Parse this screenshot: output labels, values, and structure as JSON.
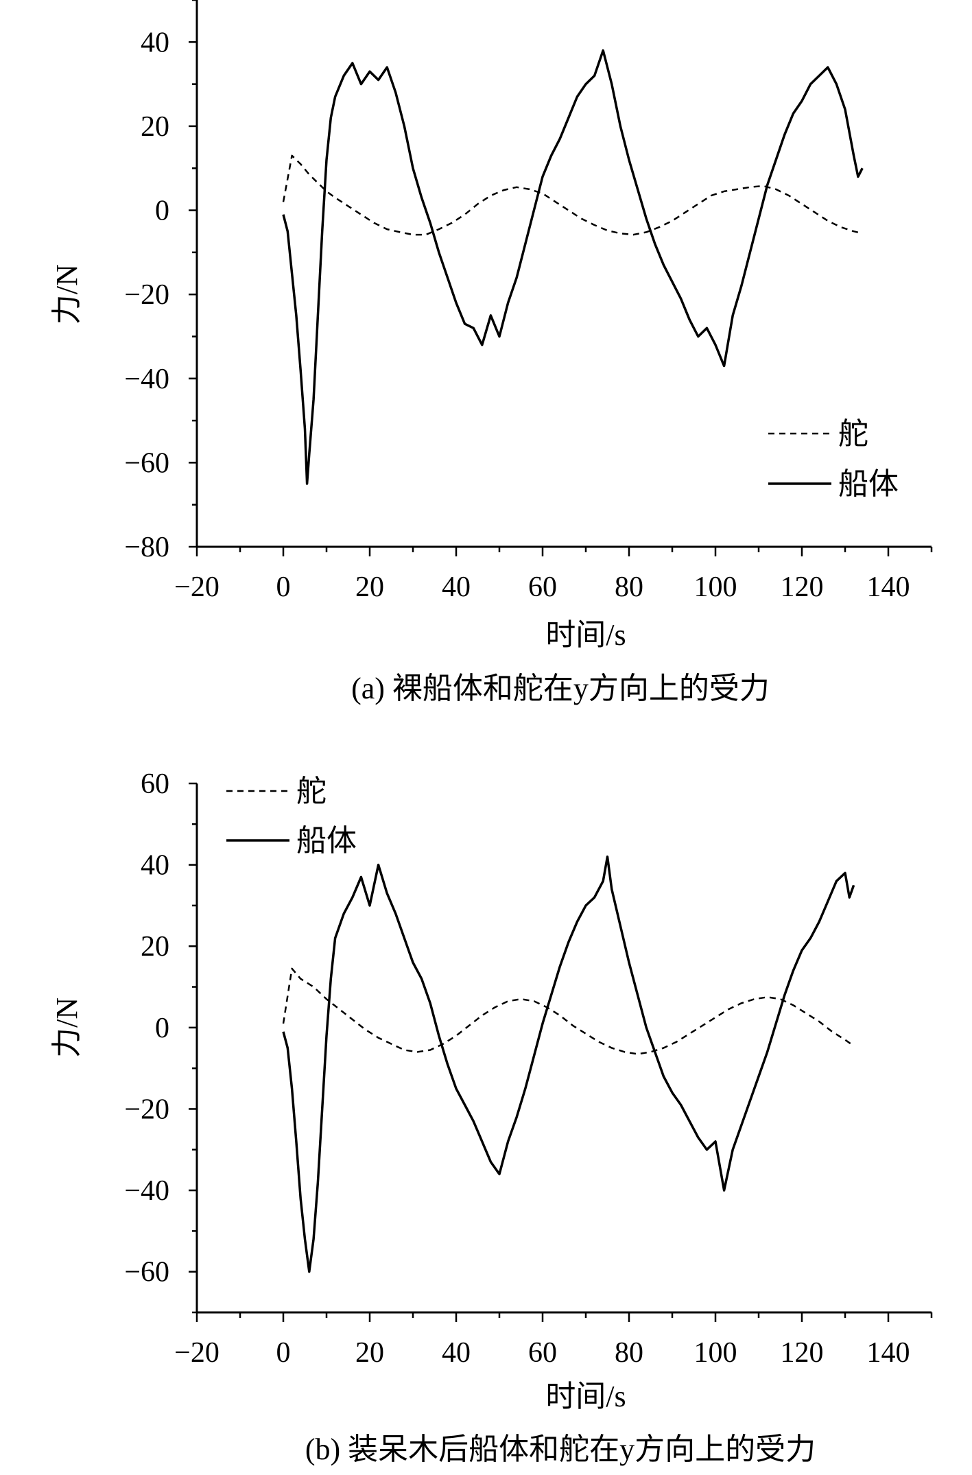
{
  "chart_data": [
    {
      "type": "line",
      "title": "(a) 裸船体和舵在y方向上的受力",
      "xlabel": "时间/s",
      "ylabel": "力/N",
      "xlim": [
        -20,
        150
      ],
      "ylim": [
        -80,
        50
      ],
      "xticks": [
        -20,
        0,
        20,
        40,
        60,
        80,
        100,
        120,
        140
      ],
      "yticks": [
        -80,
        -60,
        -40,
        -20,
        0,
        20,
        40
      ],
      "xtick_labels": [
        "−20",
        "0",
        "20",
        "40",
        "60",
        "80",
        "100",
        "120",
        "140"
      ],
      "ytick_labels": [
        "−80",
        "−60",
        "−40",
        "−20",
        "0",
        "20",
        "40"
      ],
      "legend_position": "lower-right",
      "series": [
        {
          "name": "舵",
          "style": "dashed",
          "points": [
            [
              0,
              2
            ],
            [
              2,
              13
            ],
            [
              4,
              11
            ],
            [
              6,
              8.5
            ],
            [
              8,
              6.5
            ],
            [
              10,
              4.5
            ],
            [
              12,
              3
            ],
            [
              15,
              1
            ],
            [
              18,
              -1
            ],
            [
              21,
              -3
            ],
            [
              24,
              -4.5
            ],
            [
              27,
              -5.2
            ],
            [
              30,
              -5.8
            ],
            [
              33,
              -5.8
            ],
            [
              36,
              -4.5
            ],
            [
              39,
              -3
            ],
            [
              42,
              -1
            ],
            [
              45,
              1.5
            ],
            [
              48,
              3.5
            ],
            [
              51,
              4.8
            ],
            [
              54,
              5.5
            ],
            [
              57,
              5
            ],
            [
              60,
              4
            ],
            [
              63,
              2
            ],
            [
              66,
              0
            ],
            [
              69,
              -2
            ],
            [
              72,
              -3.5
            ],
            [
              75,
              -4.8
            ],
            [
              78,
              -5.5
            ],
            [
              81,
              -5.8
            ],
            [
              84,
              -5.2
            ],
            [
              87,
              -4
            ],
            [
              90,
              -2.5
            ],
            [
              93,
              -0.5
            ],
            [
              96,
              1.5
            ],
            [
              99,
              3.5
            ],
            [
              102,
              4.5
            ],
            [
              105,
              5
            ],
            [
              108,
              5.5
            ],
            [
              111,
              5.8
            ],
            [
              114,
              5
            ],
            [
              117,
              3.5
            ],
            [
              120,
              1.5
            ],
            [
              123,
              -0.5
            ],
            [
              126,
              -2.5
            ],
            [
              129,
              -4
            ],
            [
              132,
              -5
            ],
            [
              134,
              -5.5
            ]
          ]
        },
        {
          "name": "船体",
          "style": "solid",
          "points": [
            [
              0,
              -1
            ],
            [
              1,
              -5
            ],
            [
              2,
              -15
            ],
            [
              3,
              -25
            ],
            [
              4,
              -38
            ],
            [
              5,
              -52
            ],
            [
              5.5,
              -65
            ],
            [
              6,
              -58
            ],
            [
              7,
              -45
            ],
            [
              8,
              -25
            ],
            [
              9,
              -5
            ],
            [
              10,
              12
            ],
            [
              11,
              22
            ],
            [
              12,
              27
            ],
            [
              14,
              32
            ],
            [
              16,
              35
            ],
            [
              18,
              30
            ],
            [
              20,
              33
            ],
            [
              22,
              31
            ],
            [
              24,
              34
            ],
            [
              26,
              28
            ],
            [
              28,
              20
            ],
            [
              30,
              10
            ],
            [
              32,
              3
            ],
            [
              34,
              -3
            ],
            [
              36,
              -10
            ],
            [
              38,
              -16
            ],
            [
              40,
              -22
            ],
            [
              42,
              -27
            ],
            [
              44,
              -28
            ],
            [
              46,
              -32
            ],
            [
              48,
              -25
            ],
            [
              50,
              -30
            ],
            [
              52,
              -22
            ],
            [
              54,
              -16
            ],
            [
              56,
              -8
            ],
            [
              58,
              0
            ],
            [
              60,
              8
            ],
            [
              62,
              13
            ],
            [
              64,
              17
            ],
            [
              66,
              22
            ],
            [
              68,
              27
            ],
            [
              70,
              30
            ],
            [
              72,
              32
            ],
            [
              74,
              38
            ],
            [
              76,
              30
            ],
            [
              78,
              20
            ],
            [
              80,
              12
            ],
            [
              82,
              5
            ],
            [
              84,
              -2
            ],
            [
              86,
              -8
            ],
            [
              88,
              -13
            ],
            [
              90,
              -17
            ],
            [
              92,
              -21
            ],
            [
              94,
              -26
            ],
            [
              96,
              -30
            ],
            [
              98,
              -28
            ],
            [
              100,
              -32
            ],
            [
              102,
              -37
            ],
            [
              104,
              -25
            ],
            [
              106,
              -18
            ],
            [
              108,
              -10
            ],
            [
              110,
              -2
            ],
            [
              112,
              6
            ],
            [
              114,
              12
            ],
            [
              116,
              18
            ],
            [
              118,
              23
            ],
            [
              120,
              26
            ],
            [
              122,
              30
            ],
            [
              124,
              32
            ],
            [
              126,
              34
            ],
            [
              128,
              30
            ],
            [
              130,
              24
            ],
            [
              132,
              13
            ],
            [
              133,
              8
            ],
            [
              134,
              10
            ]
          ]
        }
      ]
    },
    {
      "type": "line",
      "title": "(b) 装呆木后船体和舵在y方向上的受力",
      "xlabel": "时间/s",
      "ylabel": "力/N",
      "xlim": [
        -20,
        150
      ],
      "ylim": [
        -70,
        60
      ],
      "xticks": [
        -20,
        0,
        20,
        40,
        60,
        80,
        100,
        120,
        140
      ],
      "yticks": [
        -60,
        -40,
        -20,
        0,
        20,
        40,
        60
      ],
      "xtick_labels": [
        "−20",
        "0",
        "20",
        "40",
        "60",
        "80",
        "100",
        "120",
        "140"
      ],
      "ytick_labels": [
        "−60",
        "−40",
        "−20",
        "0",
        "20",
        "40",
        "60"
      ],
      "legend_position": "top-left",
      "series": [
        {
          "name": "舵",
          "style": "dashed",
          "points": [
            [
              0,
              1
            ],
            [
              2,
              14.5
            ],
            [
              4,
              12
            ],
            [
              7,
              10
            ],
            [
              10,
              7
            ],
            [
              13,
              4.5
            ],
            [
              16,
              2
            ],
            [
              19,
              -0.5
            ],
            [
              22,
              -2.5
            ],
            [
              25,
              -4
            ],
            [
              28,
              -5.5
            ],
            [
              31,
              -6
            ],
            [
              34,
              -5.5
            ],
            [
              37,
              -4
            ],
            [
              40,
              -2
            ],
            [
              43,
              0.5
            ],
            [
              46,
              3
            ],
            [
              49,
              5
            ],
            [
              52,
              6.5
            ],
            [
              55,
              7
            ],
            [
              58,
              6.5
            ],
            [
              61,
              5
            ],
            [
              64,
              3
            ],
            [
              67,
              0.5
            ],
            [
              70,
              -1.5
            ],
            [
              73,
              -3.5
            ],
            [
              76,
              -5
            ],
            [
              79,
              -6
            ],
            [
              82,
              -6.5
            ],
            [
              85,
              -6
            ],
            [
              88,
              -5
            ],
            [
              91,
              -3.5
            ],
            [
              94,
              -1.5
            ],
            [
              97,
              0.5
            ],
            [
              100,
              2.5
            ],
            [
              103,
              4.5
            ],
            [
              106,
              6
            ],
            [
              109,
              7
            ],
            [
              112,
              7.5
            ],
            [
              115,
              7
            ],
            [
              118,
              5.5
            ],
            [
              121,
              3.5
            ],
            [
              124,
              1.5
            ],
            [
              127,
              -1
            ],
            [
              130,
              -3
            ],
            [
              132,
              -4.5
            ]
          ]
        },
        {
          "name": "船体",
          "style": "solid",
          "points": [
            [
              0,
              -1
            ],
            [
              1,
              -5
            ],
            [
              2,
              -15
            ],
            [
              3,
              -28
            ],
            [
              4,
              -42
            ],
            [
              5,
              -52
            ],
            [
              6,
              -60
            ],
            [
              7,
              -52
            ],
            [
              8,
              -38
            ],
            [
              9,
              -20
            ],
            [
              10,
              -2
            ],
            [
              11,
              12
            ],
            [
              12,
              22
            ],
            [
              14,
              28
            ],
            [
              16,
              32
            ],
            [
              18,
              37
            ],
            [
              20,
              30
            ],
            [
              22,
              40
            ],
            [
              24,
              33
            ],
            [
              26,
              28
            ],
            [
              28,
              22
            ],
            [
              30,
              16
            ],
            [
              32,
              12
            ],
            [
              34,
              6
            ],
            [
              36,
              -2
            ],
            [
              38,
              -9
            ],
            [
              40,
              -15
            ],
            [
              42,
              -19
            ],
            [
              44,
              -23
            ],
            [
              46,
              -28
            ],
            [
              48,
              -33
            ],
            [
              50,
              -36
            ],
            [
              52,
              -28
            ],
            [
              54,
              -22
            ],
            [
              56,
              -15
            ],
            [
              58,
              -7
            ],
            [
              60,
              1
            ],
            [
              62,
              8
            ],
            [
              64,
              15
            ],
            [
              66,
              21
            ],
            [
              68,
              26
            ],
            [
              70,
              30
            ],
            [
              72,
              32
            ],
            [
              74,
              36
            ],
            [
              75,
              42
            ],
            [
              76,
              34
            ],
            [
              78,
              25
            ],
            [
              80,
              16
            ],
            [
              82,
              8
            ],
            [
              84,
              0
            ],
            [
              86,
              -6
            ],
            [
              88,
              -12
            ],
            [
              90,
              -16
            ],
            [
              92,
              -19
            ],
            [
              94,
              -23
            ],
            [
              96,
              -27
            ],
            [
              98,
              -30
            ],
            [
              100,
              -28
            ],
            [
              102,
              -40
            ],
            [
              104,
              -30
            ],
            [
              106,
              -24
            ],
            [
              108,
              -18
            ],
            [
              110,
              -12
            ],
            [
              112,
              -6
            ],
            [
              114,
              1
            ],
            [
              116,
              8
            ],
            [
              118,
              14
            ],
            [
              120,
              19
            ],
            [
              122,
              22
            ],
            [
              124,
              26
            ],
            [
              126,
              31
            ],
            [
              128,
              36
            ],
            [
              130,
              38
            ],
            [
              131,
              32
            ],
            [
              132,
              35
            ]
          ]
        }
      ]
    }
  ]
}
